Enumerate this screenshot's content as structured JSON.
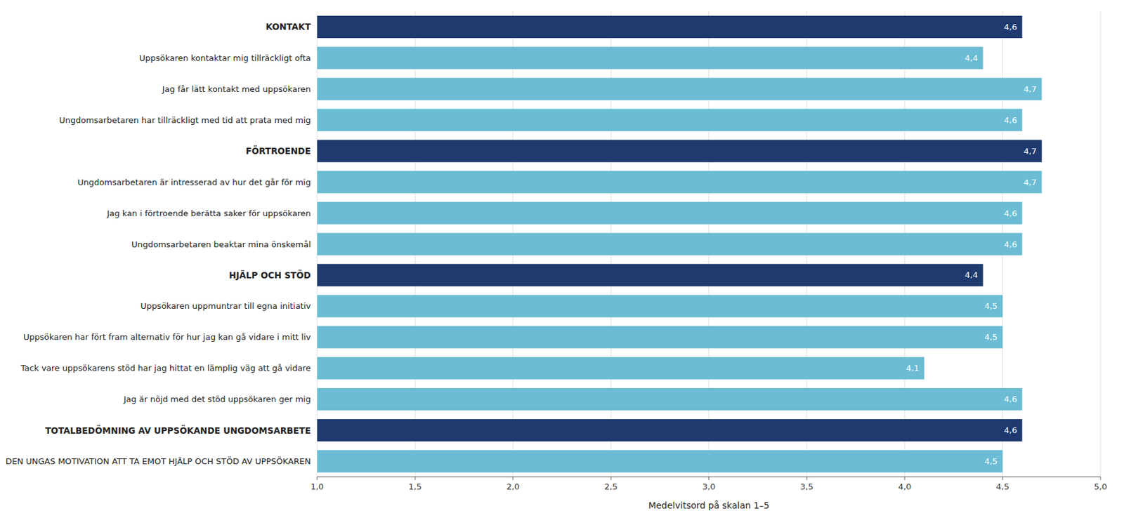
{
  "chart_data": {
    "type": "bar",
    "orientation": "horizontal",
    "categories": [
      "DEN UNGAS MOTIVATION ATT TA EMOT HJÄLP OCH STÖD AV UPPSÖKAREN",
      "TOTALBEDÖMNING AV UPPSÖKANDE UNGDOMSARBETE",
      "Jag är nöjd med det stöd uppsökaren ger mig",
      "Tack vare uppsökarens stöd har jag hittat en lämplig väg att gå vidare",
      "Uppsökaren har fört fram alternativ för hur jag kan gå vidare i mitt liv",
      "Uppsökaren uppmuntrar till egna initiativ",
      "HJÄLP OCH STÖD",
      "Ungdomsarbetaren beaktar mina önskemål",
      "Jag kan i förtroende berätta saker för uppsökaren",
      "Ungdomsarbetaren är intresserad av hur det går för mig",
      "FÖRTROENDE",
      "Ungdomsarbetaren har tillräckligt med tid att prata med mig",
      "Jag får lätt kontakt med uppsökaren",
      "Uppsökaren kontaktar mig tillräckligt ofta",
      "KONTAKT"
    ],
    "values": [
      4.5,
      4.6,
      4.6,
      4.1,
      4.5,
      4.5,
      4.4,
      4.6,
      4.6,
      4.7,
      4.7,
      4.6,
      4.7,
      4.4,
      4.6
    ],
    "value_labels": [
      "4,5",
      "4,6",
      "4,6",
      "4,1",
      "4,5",
      "4,5",
      "4,4",
      "4,6",
      "4,6",
      "4,7",
      "4,7",
      "4,6",
      "4,7",
      "4,4",
      "4,6"
    ],
    "data_labels": true,
    "colors": [
      "#6bbcd4",
      "#1e3a6e",
      "#6bbcd4",
      "#6bbcd4",
      "#6bbcd4",
      "#6bbcd4",
      "#1e3a6e",
      "#6bbcd4",
      "#6bbcd4",
      "#6bbcd4",
      "#1e3a6e",
      "#6bbcd4",
      "#6bbcd4",
      "#6bbcd4",
      "#1e3a6e"
    ],
    "xlabel": "Medelvitsord på skalan  1–5",
    "xlim": [
      1.0,
      5.0
    ],
    "xticks": [
      {
        "value": 1.0,
        "label": "1,0"
      },
      {
        "value": 1.5,
        "label": "1,5"
      },
      {
        "value": 2.0,
        "label": "2,0"
      },
      {
        "value": 2.5,
        "label": "2,5"
      },
      {
        "value": 3.0,
        "label": "3,0"
      },
      {
        "value": 3.5,
        "label": "3,5"
      },
      {
        "value": 4.0,
        "label": "4,0"
      },
      {
        "value": 4.5,
        "label": "4,5"
      },
      {
        "value": 5.0,
        "label": "5,0"
      }
    ],
    "grid": true
  }
}
